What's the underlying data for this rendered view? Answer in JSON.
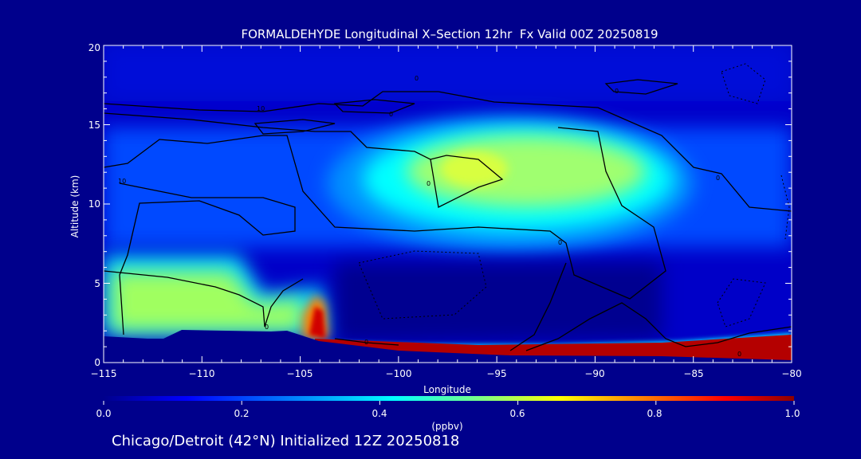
{
  "chart_data": {
    "type": "heatmap",
    "title": "FORMALDEHYDE Longitudinal X–Section 12hr  Fx Valid 00Z 20250819",
    "xlabel": "Longitude",
    "ylabel": "Altitude (km)",
    "xlim": [
      -115,
      -80
    ],
    "ylim": [
      0,
      20
    ],
    "x_ticks": [
      "−115",
      "−110",
      "−105",
      "−100",
      "−95",
      "−90",
      "−85",
      "−80"
    ],
    "y_ticks": [
      "0",
      "5",
      "10",
      "15",
      "20"
    ],
    "colorbar": {
      "label": "(ppbv)",
      "range": [
        0.0,
        1.0
      ],
      "ticks": [
        "0.0",
        "0.2",
        "0.4",
        "0.6",
        "0.8",
        "1.0"
      ],
      "colors": [
        "#00008c",
        "#0000ff",
        "#0096ff",
        "#00ffff",
        "#80ff80",
        "#ffff00",
        "#ff8000",
        "#ff0000",
        "#8c0000"
      ]
    },
    "regions": [
      {
        "feature": "upper plume",
        "lon": [
          -102,
          -86
        ],
        "alt": [
          9,
          15
        ],
        "value": 0.55
      },
      {
        "feature": "plume core",
        "lon": [
          -97,
          -94
        ],
        "alt": [
          11,
          13
        ],
        "value": 0.65
      },
      {
        "feature": "western lower layer",
        "lon": [
          -115,
          -106
        ],
        "alt": [
          2,
          5.5
        ],
        "value": 0.5
      },
      {
        "feature": "plume near -104",
        "lon": [
          -104.6,
          -103.6
        ],
        "alt": [
          1.2,
          4
        ],
        "value": 0.95
      },
      {
        "feature": "boundary layer",
        "lon": [
          -104,
          -80
        ],
        "alt": [
          0.5,
          1.5
        ],
        "value": 1.0
      },
      {
        "feature": "mid-level minimum",
        "lon": [
          -103,
          -86
        ],
        "alt": [
          2,
          7
        ],
        "value": 0.0
      },
      {
        "feature": "upper background",
        "lon": [
          -115,
          -80
        ],
        "alt": [
          16,
          20
        ],
        "value": 0.05
      }
    ],
    "contour_labels": [
      "10",
      "10",
      "0",
      "0",
      "0",
      "0",
      "0",
      "0",
      "0",
      "0",
      "0"
    ],
    "colors": {
      "background": "#00008c",
      "text": "#ffffff",
      "contour": "#000000"
    }
  },
  "footer": {
    "text": "Chicago/Detroit (42°N) Initialized 12Z 20250818"
  }
}
